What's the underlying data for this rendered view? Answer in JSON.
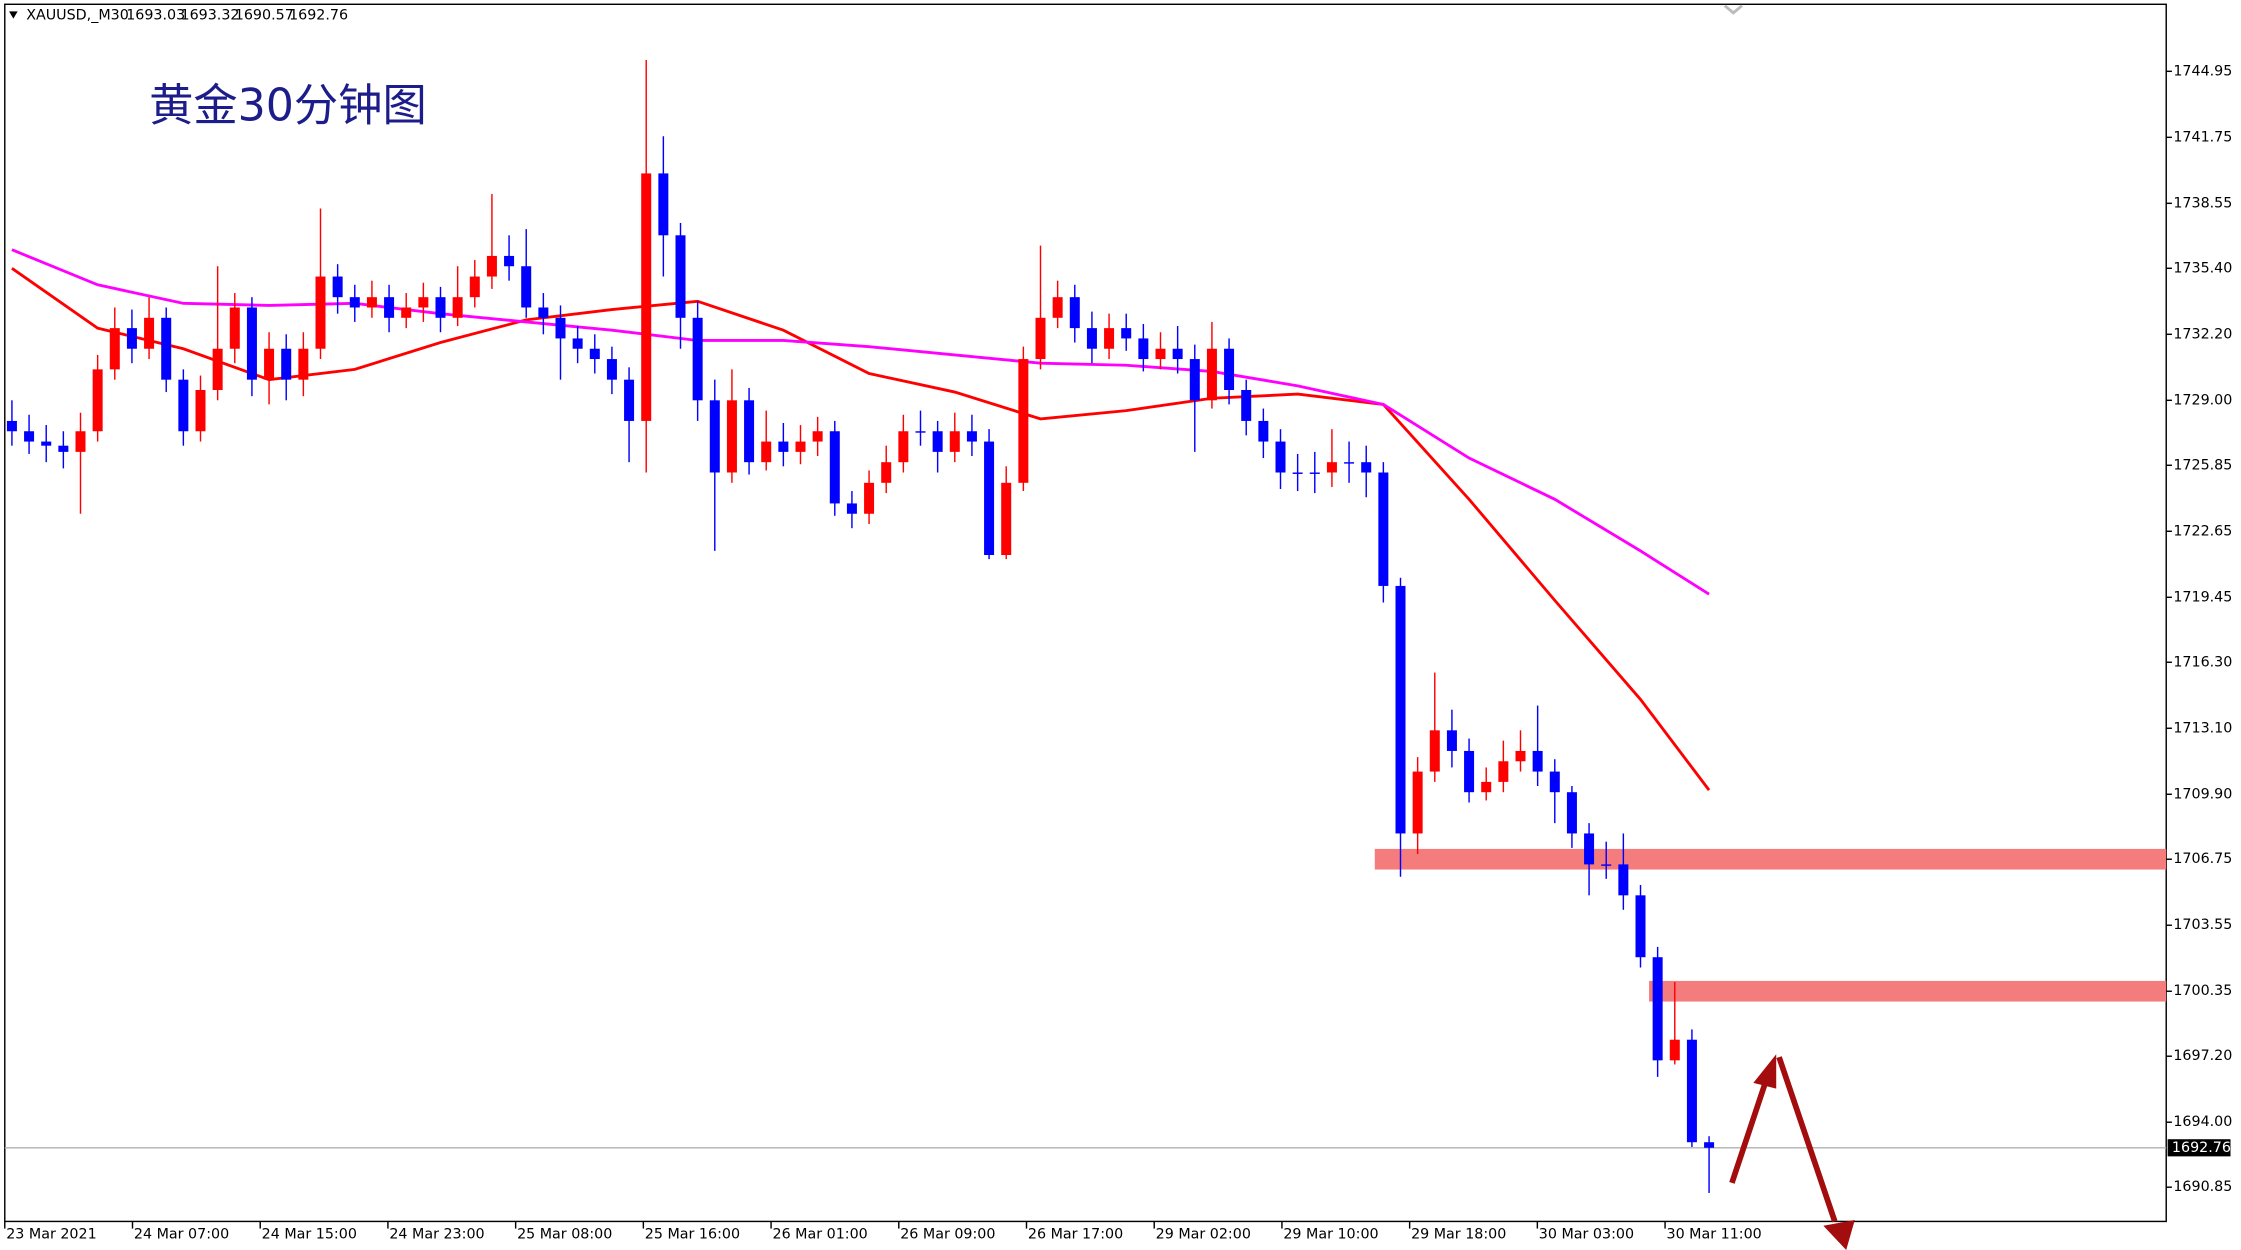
{
  "chart_data": {
    "type": "candlestick",
    "symbol": "XAUUSD,_M30",
    "title": "黄金30分钟图",
    "x_labels": [
      "23 Mar 2021",
      "24 Mar 07:00",
      "24 Mar 15:00",
      "24 Mar 23:00",
      "25 Mar 08:00",
      "25 Mar 16:00",
      "26 Mar 01:00",
      "26 Mar 09:00",
      "26 Mar 17:00",
      "29 Mar 02:00",
      "29 Mar 10:00",
      "29 Mar 18:00",
      "30 Mar 03:00",
      "30 Mar 11:00"
    ],
    "open": [
      1728,
      1727.5,
      1727,
      1726.8,
      1726.5,
      1727.5,
      1730.5,
      1732.5,
      1731.5,
      1733,
      1730,
      1727.5,
      1729.5,
      1731.5,
      1733.5,
      1730,
      1731.5,
      1730,
      1731.5,
      1735,
      1734,
      1733.5,
      1734,
      1733,
      1733.5,
      1734,
      1733,
      1734,
      1735,
      1736,
      1735.5,
      1733.5,
      1733,
      1732,
      1731.5,
      1731,
      1730,
      1728,
      1740,
      1737,
      1733,
      1729,
      1725.5,
      1729,
      1726,
      1727,
      1726.5,
      1727,
      1727.5,
      1724,
      1723.5,
      1725,
      1726,
      1727.5,
      1727.5,
      1726.5,
      1727.5,
      1727,
      1721.5,
      1725,
      1731,
      1733,
      1734,
      1732.5,
      1731.5,
      1732.5,
      1732,
      1731,
      1731.5,
      1731,
      1729,
      1731.5,
      1729.5,
      1728,
      1727,
      1725.5,
      1725.5,
      1725.5,
      1726,
      1726,
      1725.5,
      1720,
      1708,
      1711,
      1713,
      1712,
      1710,
      1710.5,
      1711.5,
      1712,
      1711,
      1710,
      1708,
      1706.5,
      1706.5,
      1705,
      1702,
      1697,
      1698,
      1693.03
    ],
    "high": [
      1729,
      1728.3,
      1727.8,
      1727.5,
      1728.4,
      1731.2,
      1733.5,
      1733.4,
      1734,
      1733.5,
      1730.5,
      1730.2,
      1735.5,
      1734.2,
      1734,
      1732.3,
      1732.2,
      1732.3,
      1738.3,
      1735.6,
      1734.6,
      1734.8,
      1734.6,
      1734.2,
      1734.7,
      1734.5,
      1735.5,
      1735.8,
      1739,
      1737,
      1737.3,
      1734.2,
      1733.6,
      1732.6,
      1732.2,
      1731.6,
      1730.6,
      1745.5,
      1741.8,
      1737.6,
      1733.8,
      1730,
      1730.5,
      1729.6,
      1728.5,
      1727.9,
      1727.8,
      1728.2,
      1728,
      1724.6,
      1725.6,
      1726.8,
      1728.3,
      1728.5,
      1728,
      1728.4,
      1728.3,
      1727.6,
      1725.8,
      1731.6,
      1736.5,
      1734.8,
      1734.6,
      1733.3,
      1733.2,
      1733.2,
      1732.7,
      1732.3,
      1732.6,
      1731.7,
      1732.8,
      1732,
      1730,
      1728.6,
      1727.6,
      1726.4,
      1726.5,
      1727.6,
      1727,
      1726.8,
      1726,
      1720.4,
      1711.7,
      1715.8,
      1714,
      1712.6,
      1711.2,
      1712.5,
      1713,
      1714.2,
      1711.6,
      1710.3,
      1708.5,
      1707.6,
      1708,
      1705.5,
      1702.5,
      1700.8,
      1698.5,
      1693.32
    ],
    "low": [
      1726.8,
      1726.4,
      1726,
      1725.7,
      1723.5,
      1727,
      1730,
      1730.8,
      1731,
      1729.4,
      1726.8,
      1727,
      1729,
      1730.8,
      1729.2,
      1728.8,
      1729,
      1729.2,
      1731,
      1733.2,
      1732.8,
      1733,
      1732.3,
      1732.5,
      1732.8,
      1732.3,
      1732.6,
      1733.5,
      1734.4,
      1734.8,
      1733,
      1732.2,
      1730,
      1730.8,
      1730.3,
      1729.3,
      1726,
      1725.5,
      1735,
      1731.5,
      1728,
      1721.7,
      1725,
      1725.4,
      1725.6,
      1725.8,
      1725.9,
      1726.3,
      1723.4,
      1722.8,
      1723,
      1724.5,
      1725.5,
      1726.8,
      1725.5,
      1726,
      1726.3,
      1721.3,
      1721.3,
      1724.6,
      1730.5,
      1732.5,
      1731.8,
      1730.8,
      1731,
      1731.4,
      1730.4,
      1730.5,
      1730.3,
      1726.5,
      1728.6,
      1728.8,
      1727.3,
      1726.2,
      1724.7,
      1724.6,
      1724.5,
      1724.8,
      1725,
      1724.3,
      1719.2,
      1705.9,
      1707,
      1710.5,
      1711.2,
      1709.5,
      1709.6,
      1710,
      1711,
      1710.3,
      1708.5,
      1707.3,
      1705,
      1705.8,
      1704.3,
      1701.5,
      1696.2,
      1696.8,
      1692.8,
      1690.57
    ],
    "close": [
      1727.5,
      1727,
      1726.8,
      1726.5,
      1727.5,
      1730.5,
      1732.5,
      1731.5,
      1733,
      1730,
      1727.5,
      1729.5,
      1731.5,
      1733.5,
      1730,
      1731.5,
      1730,
      1731.5,
      1735,
      1734,
      1733.5,
      1734,
      1733,
      1733.5,
      1734,
      1733,
      1734,
      1735,
      1736,
      1735.5,
      1733.5,
      1733,
      1732,
      1731.5,
      1731,
      1730,
      1728,
      1740,
      1737,
      1733,
      1729,
      1725.5,
      1729,
      1726,
      1727,
      1726.5,
      1727,
      1727.5,
      1724,
      1723.5,
      1725,
      1726,
      1727.5,
      1727.5,
      1726.5,
      1727.5,
      1727,
      1721.5,
      1725,
      1731,
      1733,
      1734,
      1732.5,
      1731.5,
      1732.5,
      1732,
      1731,
      1731.5,
      1731,
      1729,
      1731.5,
      1729.5,
      1728,
      1727,
      1725.5,
      1725.5,
      1725.5,
      1726,
      1726,
      1725.5,
      1720,
      1708,
      1711,
      1713,
      1712,
      1710,
      1710.5,
      1711.5,
      1712,
      1711,
      1710,
      1708,
      1706.5,
      1706.5,
      1705,
      1702,
      1697,
      1698,
      1693.03,
      1692.76
    ],
    "up_color": "#ff0000",
    "down_color": "#0000ff",
    "ma_lines": [
      {
        "color": "#ff0000",
        "x": [
          0,
          5,
          10,
          15,
          20,
          25,
          30,
          35,
          40,
          45,
          50,
          55,
          60,
          65,
          70,
          75,
          80,
          85,
          90,
          95,
          99
        ],
        "values": [
          1735.4,
          1732.5,
          1731.5,
          1730,
          1730.5,
          1731.8,
          1732.9,
          1733.4,
          1733.8,
          1732.4,
          1730.3,
          1729.4,
          1728.1,
          1728.5,
          1729.1,
          1729.3,
          1728.8,
          1724.2,
          1719.3,
          1714.5,
          1710.1
        ]
      },
      {
        "color": "#ff00ff",
        "x": [
          0,
          5,
          10,
          15,
          20,
          25,
          30,
          35,
          40,
          45,
          50,
          55,
          60,
          65,
          70,
          75,
          80,
          85,
          90,
          95,
          99
        ],
        "values": [
          1736.3,
          1734.6,
          1733.7,
          1733.6,
          1733.7,
          1733.2,
          1732.8,
          1732.4,
          1731.9,
          1731.9,
          1731.6,
          1731.2,
          1730.8,
          1730.7,
          1730.4,
          1729.7,
          1728.8,
          1726.2,
          1724.2,
          1721.7,
          1719.6
        ]
      }
    ],
    "zones": [
      {
        "start_index": 80,
        "low": 1706.25,
        "high": 1707.25
      },
      {
        "start_index": 96,
        "low": 1699.85,
        "high": 1700.85
      }
    ],
    "zone_color": "#f47c7c",
    "ylim": [
      1689.19,
      1748.2
    ],
    "yticks": [
      1744.95,
      1741.75,
      1738.55,
      {
        "value": 1735.4,
        "label": "1735.40"
      },
      {
        "value": 1732.2,
        "label": "1732.20"
      },
      {
        "value": 1729,
        "label": "1729.00"
      },
      1725.85,
      1722.65,
      1719.45,
      {
        "value": 1716.3,
        "label": "1716.30"
      },
      {
        "value": 1713.1,
        "label": "1713.10"
      },
      {
        "value": 1709.9,
        "label": "1709.90"
      },
      1706.75,
      1703.55,
      1700.35,
      {
        "value": 1697.2,
        "label": "1697.20"
      },
      {
        "value": 1694,
        "label": "1694.00"
      },
      1690.85
    ]
  }
}
